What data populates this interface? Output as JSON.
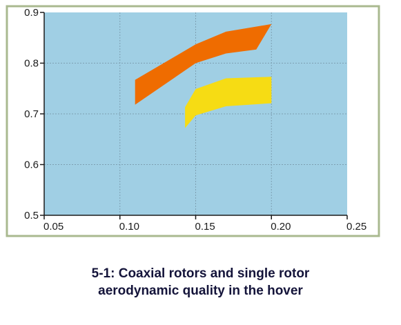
{
  "caption": {
    "line1": "5-1: Coaxial rotors and single rotor",
    "line2": "aerodynamic quality in the hover"
  },
  "colors": {
    "frame_border": "#a9b98f",
    "plot_background": "#a0cfe4",
    "grid": "#7d9fb1",
    "axis": "#1a1a1a",
    "series_orange": "#ef6c00",
    "series_yellow": "#f6dc14"
  },
  "chart_data": {
    "type": "area",
    "title": "",
    "xlabel": "",
    "ylabel": "",
    "xlim": [
      0.05,
      0.25
    ],
    "ylim": [
      0.5,
      0.9
    ],
    "x_ticks": [
      "0.05",
      "0.10",
      "0.15",
      "0.20",
      "0.25"
    ],
    "y_ticks": [
      "0.5",
      "0.6",
      "0.7",
      "0.8",
      "0.9"
    ],
    "grid": true,
    "legend": "none",
    "series": [
      {
        "color": "#ef6c00",
        "upper": [
          [
            0.11,
            0.767
          ],
          [
            0.15,
            0.837
          ],
          [
            0.17,
            0.862
          ],
          [
            0.2,
            0.877
          ]
        ],
        "lower": [
          [
            0.11,
            0.718
          ],
          [
            0.15,
            0.8
          ],
          [
            0.17,
            0.819
          ],
          [
            0.19,
            0.827
          ],
          [
            0.2,
            0.877
          ]
        ]
      },
      {
        "color": "#f6dc14",
        "upper": [
          [
            0.143,
            0.713
          ],
          [
            0.15,
            0.749
          ],
          [
            0.17,
            0.77
          ],
          [
            0.2,
            0.773
          ]
        ],
        "lower": [
          [
            0.143,
            0.672
          ],
          [
            0.15,
            0.697
          ],
          [
            0.17,
            0.715
          ],
          [
            0.2,
            0.721
          ]
        ]
      }
    ]
  }
}
